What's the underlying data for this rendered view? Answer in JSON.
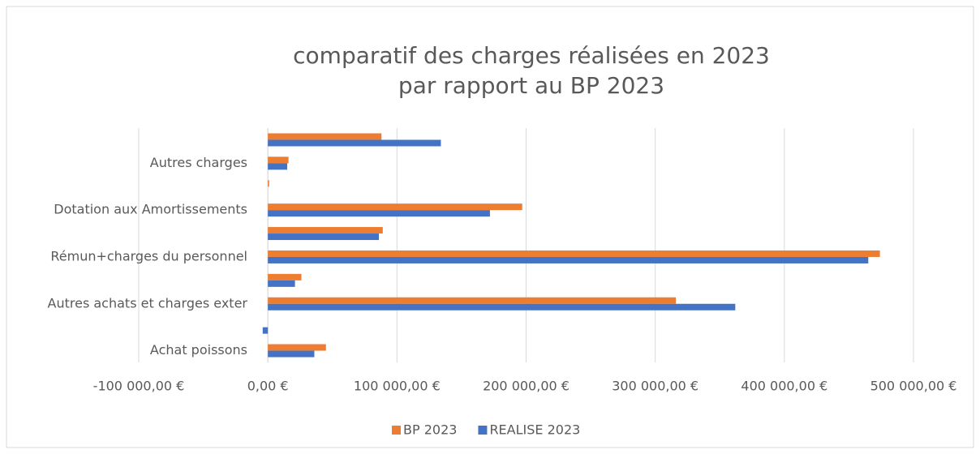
{
  "chart_data": {
    "type": "barh",
    "title": [
      "comparatif des charges réalisées en 2023",
      "par rapport au BP 2023"
    ],
    "categories": [
      "Achat poissons",
      null,
      "Autres achats et charges exter",
      null,
      "Rémun+charges du personnel",
      null,
      "Dotation aux Amortissements",
      null,
      "Autres charges",
      null
    ],
    "series": [
      {
        "name": "BP 2023",
        "color": "#ED7D31",
        "values": [
          45000,
          0,
          316000,
          26000,
          474000,
          89000,
          197000,
          1000,
          16000,
          88000
        ]
      },
      {
        "name": "REALISE 2023",
        "color": "#4472C4",
        "values": [
          36000,
          -4000,
          362000,
          21000,
          465000,
          86000,
          172000,
          0,
          15000,
          134000
        ]
      }
    ],
    "xlim": [
      -100000,
      500000
    ],
    "xticks": [
      {
        "value": -100000,
        "label": "-100 000,00 €"
      },
      {
        "value": 0,
        "label": "0,00 €"
      },
      {
        "value": 100000,
        "label": "100 000,00 €"
      },
      {
        "value": 200000,
        "label": "200 000,00 €"
      },
      {
        "value": 300000,
        "label": "300 000,00 €"
      },
      {
        "value": 400000,
        "label": "400 000,00 €"
      },
      {
        "value": 500000,
        "label": "500 000,00 €"
      }
    ],
    "grid": true,
    "legend": "bottom"
  }
}
